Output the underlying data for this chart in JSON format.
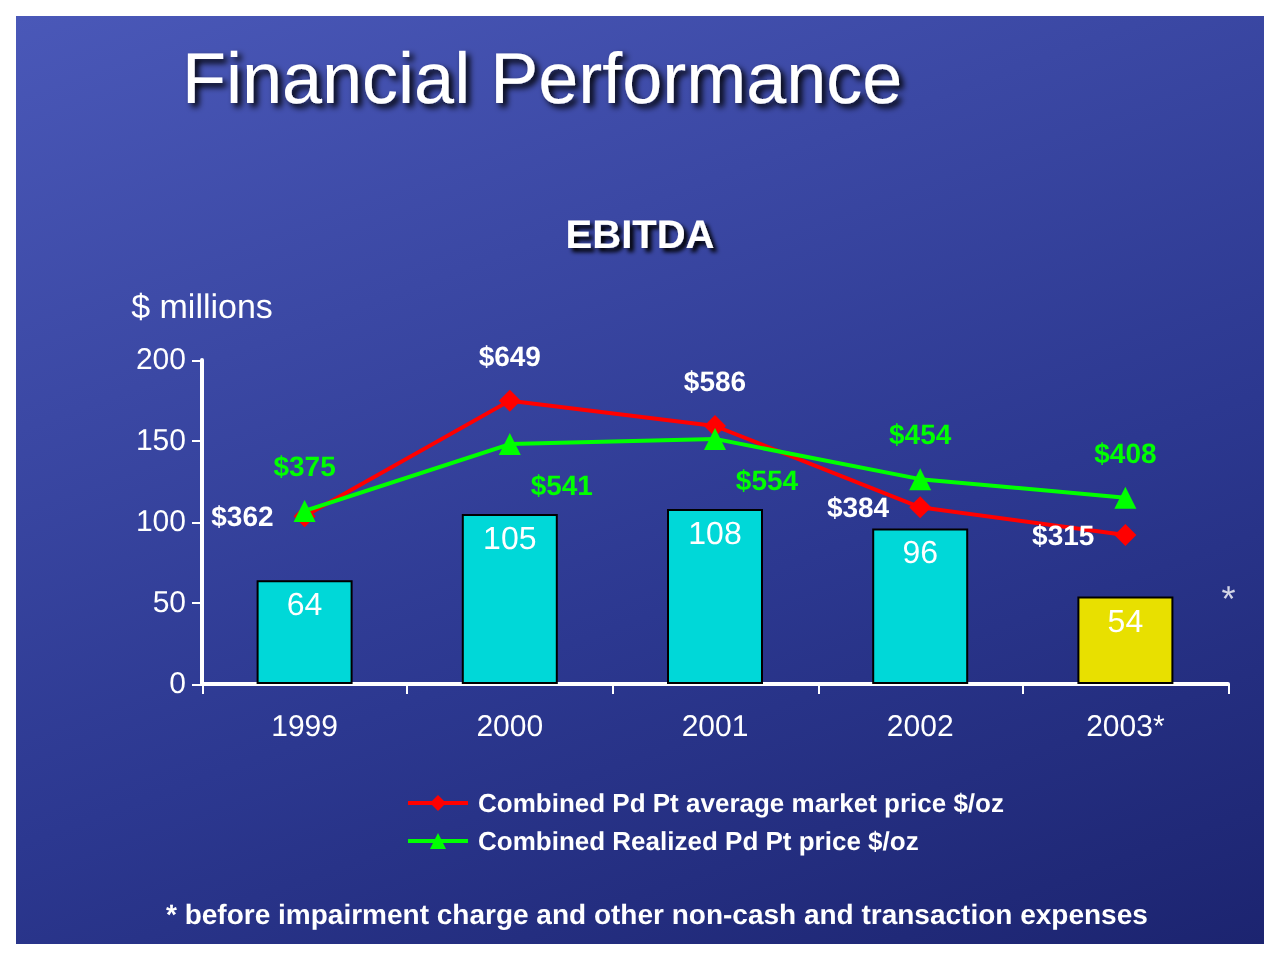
{
  "chart_data": {
    "type": "bar",
    "title": "Financial Performance",
    "subtitle": "EBITDA",
    "ylabel": "$ millions",
    "categories": [
      "1999",
      "2000",
      "2001",
      "2002",
      "2003*"
    ],
    "series": [
      {
        "colors": [
          "#00d8d8",
          "#00d8d8",
          "#00d8d8",
          "#00d8d8",
          "#e8e000"
        ],
        "values": [
          64,
          105,
          108,
          96,
          54
        ],
        "value_labels": [
          "64",
          "105",
          "108",
          "96",
          "54"
        ]
      },
      {
        "type": "line",
        "axis": "y2",
        "name": "Combined Pd Pt average market price $/oz",
        "color": "#ff0000",
        "marker": "diamond",
        "values": [
          362,
          649,
          586,
          384,
          315
        ],
        "value_labels": [
          "$362",
          "$649",
          "$586",
          "$384",
          "$315"
        ]
      },
      {
        "type": "line",
        "axis": "y2",
        "name": "Combined Realized Pd Pt price $/oz",
        "color": "#00ff00",
        "marker": "triangle",
        "values": [
          375,
          541,
          554,
          454,
          408
        ],
        "value_labels": [
          "$375",
          "$541",
          "$554",
          "$454",
          "$408"
        ]
      }
    ],
    "ylim": [
      0,
      200
    ],
    "yticks": [
      0,
      50,
      100,
      150,
      200
    ],
    "y2lim": [
      -55,
      750
    ],
    "legend": "bottom",
    "grid": false,
    "annotations": [
      {
        "text": "*",
        "x": "2003*",
        "y": 54
      },
      "* before impairment charge and other non-cash and transaction expenses"
    ]
  }
}
